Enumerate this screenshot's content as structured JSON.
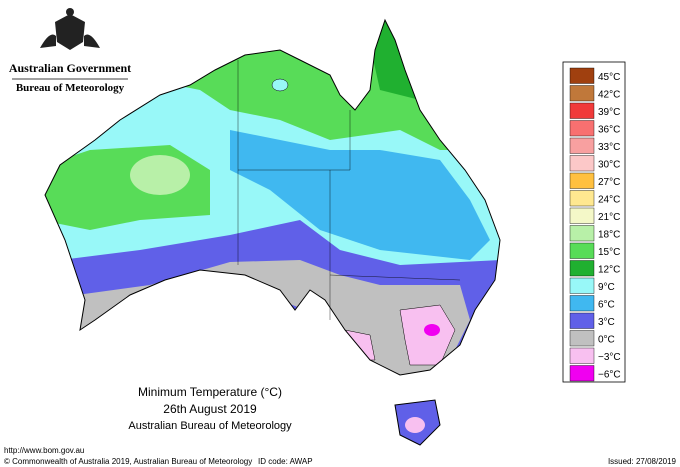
{
  "header": {
    "government": "Australian Government",
    "agency": "Bureau of Meteorology"
  },
  "legend": [
    {
      "label": "45°C",
      "color": "#a0400f"
    },
    {
      "label": "42°C",
      "color": "#c0783a"
    },
    {
      "label": "39°C",
      "color": "#f03a3a"
    },
    {
      "label": "36°C",
      "color": "#f87070"
    },
    {
      "label": "33°C",
      "color": "#f8a0a0"
    },
    {
      "label": "30°C",
      "color": "#fcc8c8"
    },
    {
      "label": "27°C",
      "color": "#ffc040"
    },
    {
      "label": "24°C",
      "color": "#ffe890"
    },
    {
      "label": "21°C",
      "color": "#f4f8c8"
    },
    {
      "label": "18°C",
      "color": "#b8f0a8"
    },
    {
      "label": "15°C",
      "color": "#58dc58"
    },
    {
      "label": "12°C",
      "color": "#20b030"
    },
    {
      "label": "9°C",
      "color": "#98f8f8"
    },
    {
      "label": "6°C",
      "color": "#40b8f0"
    },
    {
      "label": "3°C",
      "color": "#6060e8"
    },
    {
      "label": "0°C",
      "color": "#c0c0c0"
    },
    {
      "label": "−3°C",
      "color": "#f8c0f0"
    },
    {
      "label": "−6°C",
      "color": "#f000f0"
    }
  ],
  "title": {
    "line1": "Minimum Temperature (°C)",
    "line2": "26th August 2019",
    "line3": "Australian Bureau of Meteorology"
  },
  "footer": {
    "url": "http://www.bom.gov.au",
    "copyright": "© Commonwealth of Australia 2019, Australian Bureau of Meteorology",
    "id": "ID code: AWAP",
    "issued": "Issued: 27/08/2019"
  }
}
